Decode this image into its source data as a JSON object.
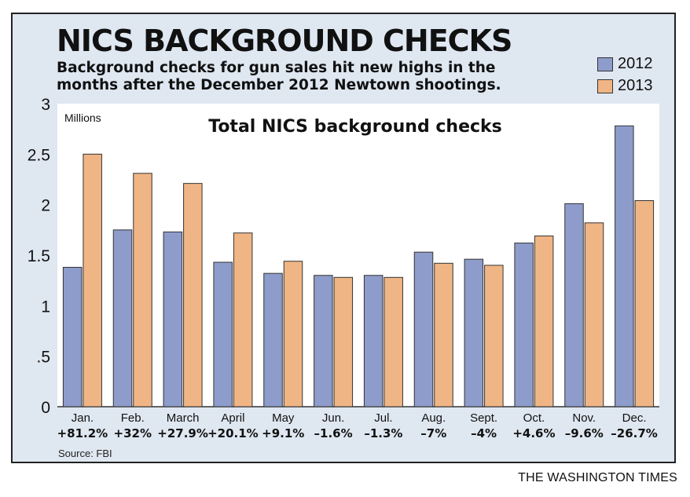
{
  "title": "NICS BACKGROUND CHECKS",
  "subtitle": "Background checks for gun sales hit new highs in the months after the December 2012 Newtown shootings.",
  "source": "Source: FBI",
  "credit": "THE WASHINGTON TIMES",
  "colors": {
    "s2012": "#8e9ccb",
    "s2013": "#f0b585",
    "frame_bg": "#dfe7f1",
    "plot_bg": "#ffffff"
  },
  "chart_data": {
    "type": "bar",
    "title": "Total NICS background checks",
    "ylabel": "Millions",
    "ylim": [
      0,
      3
    ],
    "yticks": [
      {
        "value": 0,
        "label": "0"
      },
      {
        "value": 0.5,
        "label": ".5"
      },
      {
        "value": 1,
        "label": "1"
      },
      {
        "value": 1.5,
        "label": "1.5"
      },
      {
        "value": 2,
        "label": "2"
      },
      {
        "value": 2.5,
        "label": "2.5"
      },
      {
        "value": 3,
        "label": "3"
      }
    ],
    "categories": [
      "Jan.",
      "Feb.",
      "March",
      "April",
      "May",
      "Jun.",
      "Jul.",
      "Aug.",
      "Sept.",
      "Oct.",
      "Nov.",
      "Dec."
    ],
    "changes": [
      "+81.2%",
      "+32%",
      "+27.9%",
      "+20.1%",
      "+9.1%",
      "–1.6%",
      "–1.3%",
      "–7%",
      "–4%",
      "+4.6%",
      "–9.6%",
      "–26.7%"
    ],
    "series": [
      {
        "name": "2012",
        "values": [
          1.38,
          1.75,
          1.73,
          1.43,
          1.32,
          1.3,
          1.3,
          1.53,
          1.46,
          1.62,
          2.01,
          2.78
        ]
      },
      {
        "name": "2013",
        "values": [
          2.5,
          2.31,
          2.21,
          1.72,
          1.44,
          1.28,
          1.28,
          1.42,
          1.4,
          1.69,
          1.82,
          2.04
        ]
      }
    ],
    "grid": false,
    "legend": "top-right"
  }
}
